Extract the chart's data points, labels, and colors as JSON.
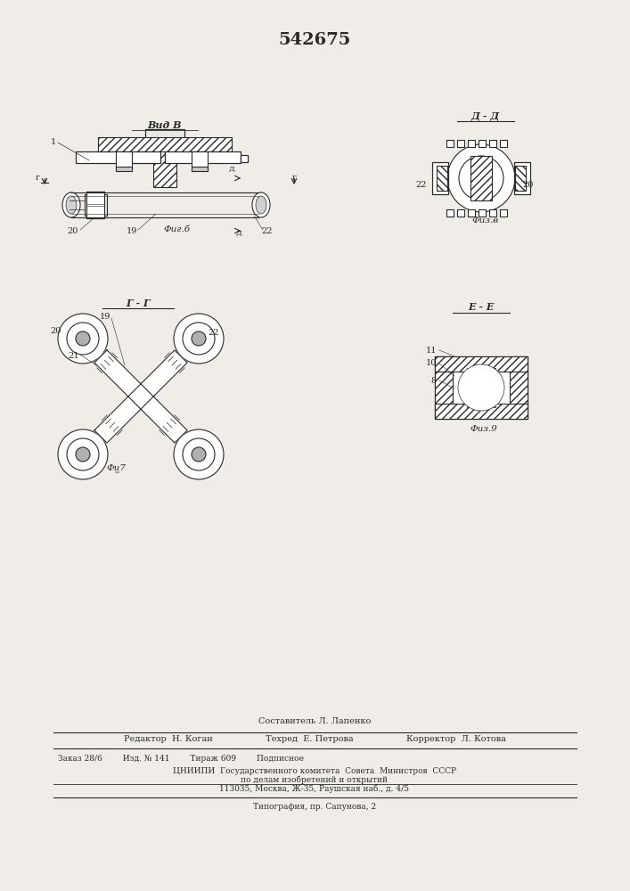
{
  "patent_number": "542675",
  "background_color": "#f0ede8",
  "line_color": "#2a2a2a",
  "hatch_color": "#2a2a2a",
  "fig_labels": {
    "fig6": "Фиг.б",
    "fig7": "Фи̳7",
    "fig8": "Физ.в",
    "fig9": "Физ.9"
  },
  "view_labels": {
    "vid_v": "Вид В",
    "r_r": "Г - Г",
    "a_a": "Д - Д",
    "e_e": "Е - Е"
  },
  "footer_lines": [
    "Составитель Л. Лапенко",
    "Редактор  Н. Коган                   Техред  Е. Петрова                   Корректор  Л. Котова",
    "Заказ 28/6        Изд. № 141        Тираж 609        Подписное",
    "ЦНИИПИ  Государственного комитета  Совета  Министров  СССР",
    "по делам изобретений и открытий",
    "113035, Москва, Ж-35, Раушская наб., д. 4/5",
    "Типография, пр. Сапунова, 2"
  ]
}
